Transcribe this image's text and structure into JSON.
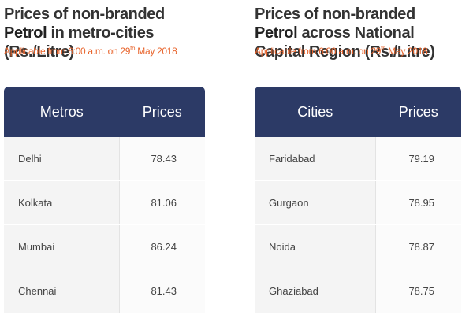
{
  "left": {
    "title_pre": "Prices of non-branded ",
    "title_bold": "Petrol",
    "title_post": " in metro-cities (Rs./Litre)",
    "applicable_pre": "Applicable from 6:00 a.m. on 29",
    "applicable_sup": "th",
    "applicable_post": " May 2018",
    "headers": [
      "Metros",
      "Prices"
    ],
    "rows": [
      {
        "name": "Delhi",
        "price": "78.43"
      },
      {
        "name": "Kolkata",
        "price": "81.06"
      },
      {
        "name": "Mumbai",
        "price": "86.24"
      },
      {
        "name": "Chennai",
        "price": "81.43"
      }
    ]
  },
  "right": {
    "title_pre": "Prices of non-branded ",
    "title_bold": "Petrol",
    "title_post": " across National Capital Region (Rs./Litre)",
    "applicable_pre": "Applicable from 6:00 a.m. on 29",
    "applicable_sup": "th",
    "applicable_post": " May 2018",
    "headers": [
      "Cities",
      "Prices"
    ],
    "rows": [
      {
        "name": "Faridabad",
        "price": "79.19"
      },
      {
        "name": "Gurgaon",
        "price": "78.95"
      },
      {
        "name": "Noida",
        "price": "78.87"
      },
      {
        "name": "Ghaziabad",
        "price": "78.75"
      }
    ]
  },
  "colors": {
    "header_bg": "#2c3a66",
    "accent_orange": "#e8642c"
  }
}
